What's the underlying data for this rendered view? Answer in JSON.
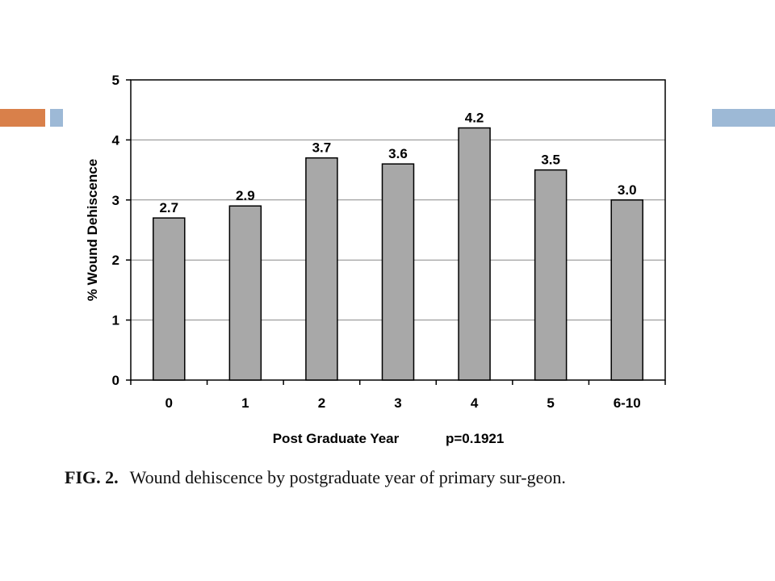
{
  "colors": {
    "deco_orange": "#d9804a",
    "deco_blue": "#9db9d6",
    "bar_fill": "#a8a8a8",
    "bar_stroke": "#000000",
    "gridline": "#888888"
  },
  "chart_data": {
    "type": "bar",
    "categories": [
      "0",
      "1",
      "2",
      "3",
      "4",
      "5",
      "6-10"
    ],
    "values": [
      2.7,
      2.9,
      3.7,
      3.6,
      4.2,
      3.5,
      3.0
    ],
    "value_labels": [
      "2.7",
      "2.9",
      "3.7",
      "3.6",
      "4.2",
      "3.5",
      "3.0"
    ],
    "ylabel": "% Wound Dehiscence",
    "xlabel": "Post Graduate Year",
    "annotation": "p=0.1921",
    "ylim": [
      0,
      5
    ],
    "yticks": [
      0,
      1,
      2,
      3,
      4,
      5
    ],
    "grid": true
  },
  "caption": {
    "label": "FIG. 2.",
    "text": "Wound dehiscence by postgraduate year of primary sur-geon."
  }
}
